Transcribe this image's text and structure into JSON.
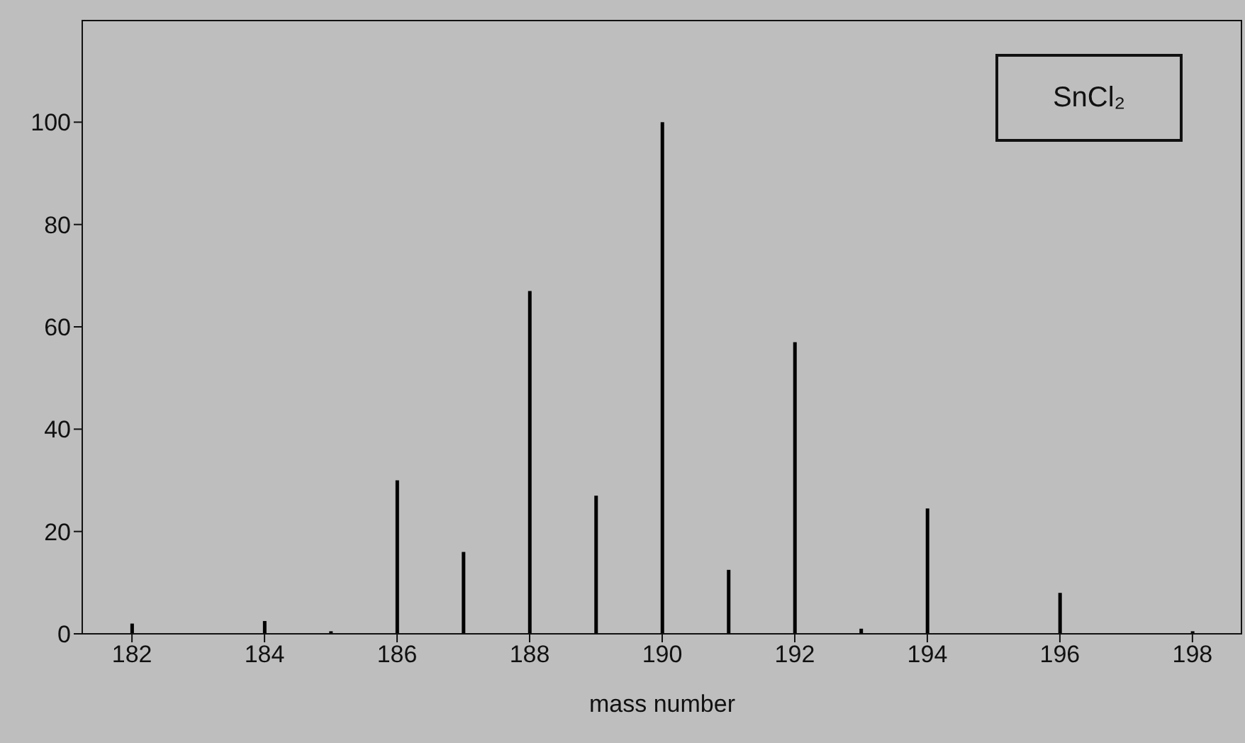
{
  "chart_data": {
    "type": "bar",
    "xlabel": "mass number",
    "annotations": [
      "SnCl₂"
    ],
    "x": [
      182,
      184,
      185,
      186,
      187,
      188,
      189,
      190,
      191,
      192,
      193,
      194,
      196,
      198
    ],
    "values": [
      2,
      2.5,
      0.5,
      30,
      16,
      67,
      27,
      100,
      12.5,
      57,
      1,
      24.5,
      8,
      0.5
    ],
    "color": "#000000",
    "xlim": [
      181.25,
      198.75
    ],
    "xticks": [
      182,
      184,
      186,
      188,
      190,
      192,
      194,
      196,
      198
    ],
    "ylim": [
      0,
      120
    ],
    "yticks": [
      0,
      20,
      40,
      60,
      80,
      100
    ],
    "grid": false
  }
}
